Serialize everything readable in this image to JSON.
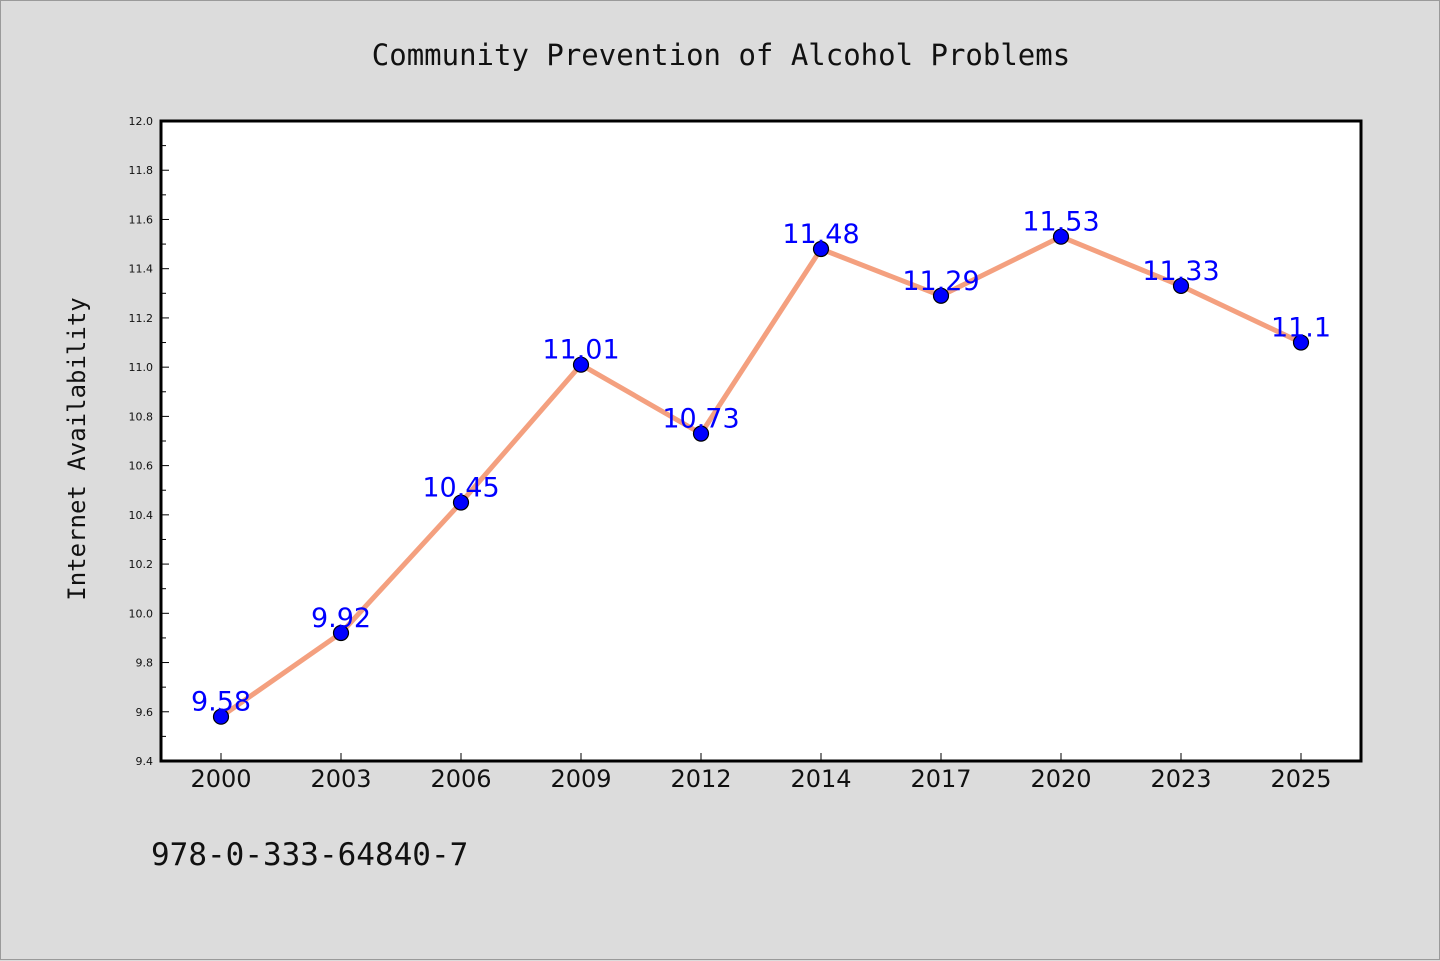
{
  "chart_data": {
    "type": "line",
    "title": "Community Prevention of Alcohol Problems",
    "xlabel": "",
    "ylabel": "Internet Availability",
    "categories": [
      "2000",
      "2003",
      "2006",
      "2009",
      "2012",
      "2014",
      "2017",
      "2020",
      "2023",
      "2025"
    ],
    "series": [
      {
        "values": [
          9.58,
          9.92,
          10.45,
          11.01,
          10.73,
          11.48,
          11.29,
          11.53,
          11.33,
          11.1
        ],
        "labels": [
          "9.58",
          "9.92",
          "10.45",
          "11.01",
          "10.73",
          "11.48",
          "11.29",
          "11.53",
          "11.33",
          "11.1"
        ],
        "line_color": "#f4a07f",
        "marker_color": "#0000ff"
      }
    ],
    "ylim": [
      9.4,
      12.0
    ],
    "yticks": [
      "9.4",
      "9.6",
      "9.8",
      "10.0",
      "10.2",
      "10.4",
      "10.6",
      "10.8",
      "11.0",
      "11.2",
      "11.4",
      "11.6",
      "11.8",
      "12.0"
    ],
    "grid": false,
    "legend": "none"
  },
  "footer_text": "978-0-333-64840-7",
  "colors": {
    "background": "#dcdcdc",
    "plot_background": "#ffffff"
  }
}
